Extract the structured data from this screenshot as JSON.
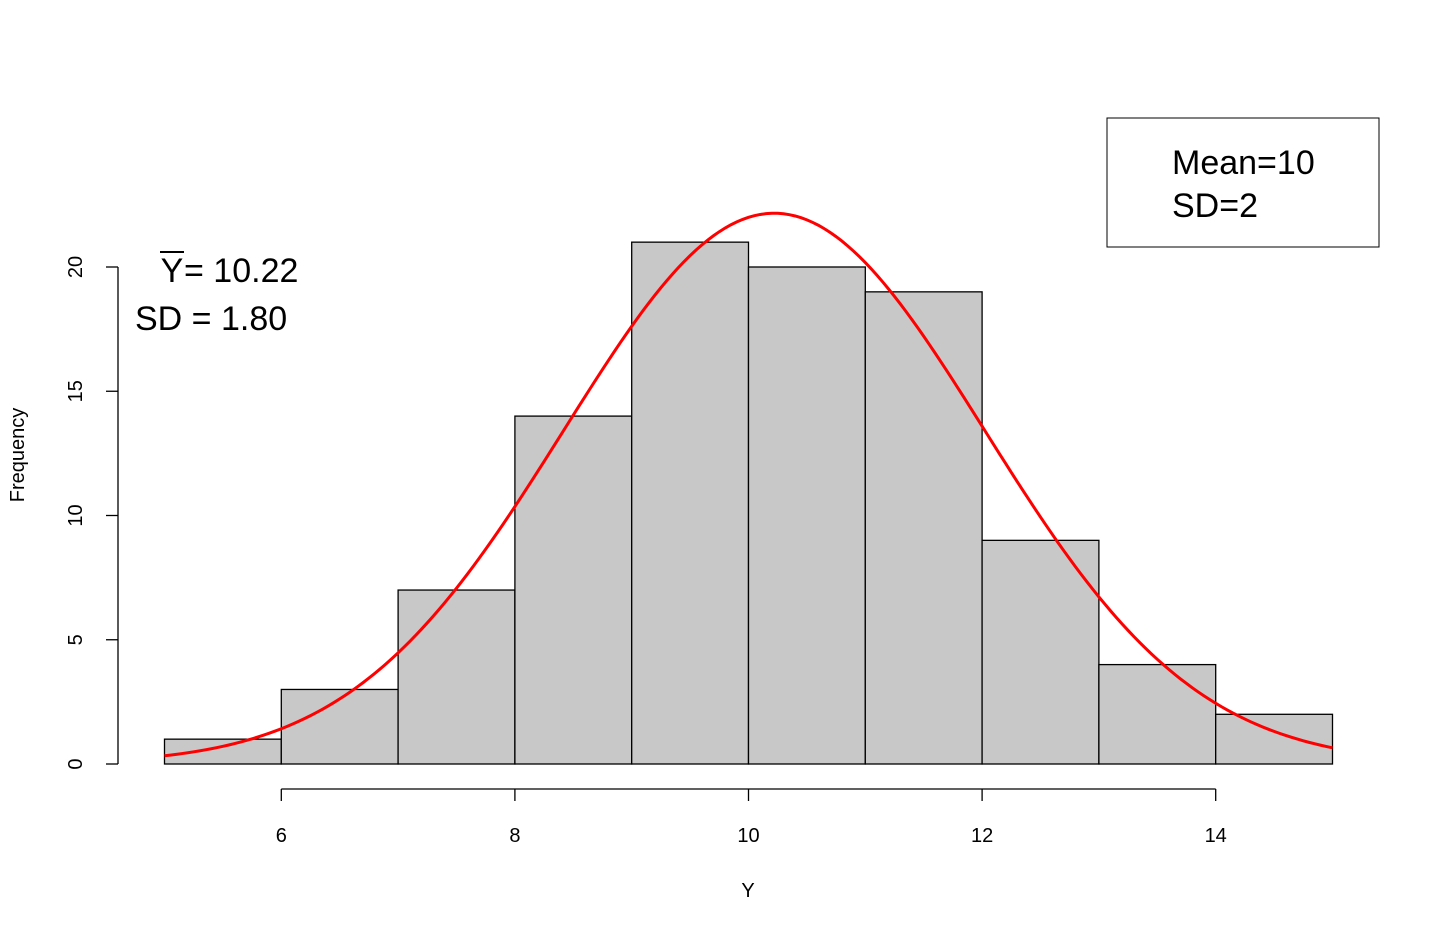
{
  "chart_data": {
    "type": "bar",
    "subtype": "histogram",
    "title": "",
    "xlabel": "Y",
    "ylabel": "Frequency",
    "bins": [
      {
        "x0": 5,
        "x1": 6,
        "count": 1
      },
      {
        "x0": 6,
        "x1": 7,
        "count": 3
      },
      {
        "x0": 7,
        "x1": 8,
        "count": 7
      },
      {
        "x0": 8,
        "x1": 9,
        "count": 14
      },
      {
        "x0": 9,
        "x1": 10,
        "count": 21
      },
      {
        "x0": 10,
        "x1": 11,
        "count": 20
      },
      {
        "x0": 11,
        "x1": 12,
        "count": 19
      },
      {
        "x0": 12,
        "x1": 13,
        "count": 9
      },
      {
        "x0": 13,
        "x1": 14,
        "count": 4
      },
      {
        "x0": 14,
        "x1": 15,
        "count": 2
      }
    ],
    "xlim": [
      5,
      15
    ],
    "ylim": [
      0,
      22
    ],
    "x_ticks": [
      6,
      8,
      10,
      12,
      14
    ],
    "y_ticks": [
      0,
      5,
      10,
      15,
      20
    ],
    "curve": {
      "type": "normal-density",
      "mean": 10.22,
      "sd": 1.8,
      "n": 100,
      "binwidth": 1,
      "color": "#ff0000"
    },
    "bar_fill": "#c8c8c8",
    "grid": false,
    "annotation": {
      "ybar_symbol": "Y",
      "mean_text": " = 10.22",
      "sd_text": "SD = 1.80"
    },
    "legend": {
      "position": "top-right",
      "lines": [
        "Mean=10",
        "SD=2"
      ]
    }
  }
}
